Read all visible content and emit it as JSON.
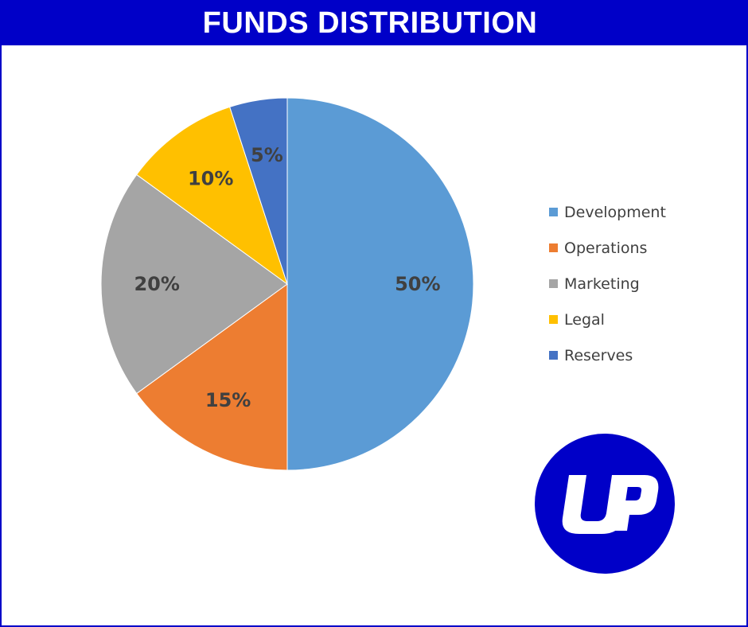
{
  "header": {
    "title": "FUNDS DISTRIBUTION"
  },
  "chart_data": {
    "type": "pie",
    "title": "FUNDS DISTRIBUTION",
    "categories": [
      "Development",
      "Operations",
      "Marketing",
      "Legal",
      "Reserves"
    ],
    "values": [
      50,
      15,
      20,
      10,
      5
    ],
    "labels": [
      "50%",
      "15%",
      "20%",
      "10%",
      "5%"
    ],
    "colors": [
      "#5b9bd5",
      "#ed7d31",
      "#a5a5a5",
      "#ffc000",
      "#4472c4"
    ],
    "legend_position": "right"
  },
  "logo": {
    "text": "UP",
    "color": "#0000c8"
  }
}
